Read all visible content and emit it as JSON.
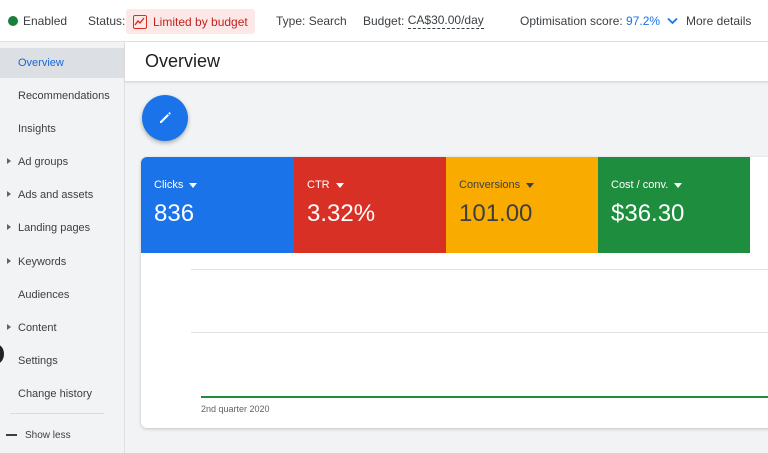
{
  "topbar": {
    "enabled_label": "Enabled",
    "status_label": "Status:",
    "status_value": "Limited by budget",
    "type_label": "Type:",
    "type_value": "Search",
    "budget_label": "Budget:",
    "budget_value": "CA$30.00/day",
    "optimisation_label": "Optimisation score:",
    "optimisation_value": "97.2%",
    "more_details": "More details",
    "colors": {
      "enabled": "#188038",
      "status_bg": "#fce8e6",
      "status_text": "#c5221f",
      "link": "#1a73e8"
    }
  },
  "sidebar": {
    "items": [
      {
        "label": "Overview",
        "active": true,
        "expandable": false
      },
      {
        "label": "Recommendations",
        "active": false,
        "expandable": false
      },
      {
        "label": "Insights",
        "active": false,
        "expandable": false
      },
      {
        "label": "Ad groups",
        "active": false,
        "expandable": true
      },
      {
        "label": "Ads and assets",
        "active": false,
        "expandable": true
      },
      {
        "label": "Landing pages",
        "active": false,
        "expandable": true
      },
      {
        "label": "Keywords",
        "active": false,
        "expandable": true
      },
      {
        "label": "Audiences",
        "active": false,
        "expandable": false
      },
      {
        "label": "Content",
        "active": false,
        "expandable": true
      },
      {
        "label": "Settings",
        "active": false,
        "expandable": false
      },
      {
        "label": "Change history",
        "active": false,
        "expandable": false
      }
    ],
    "show_less": "Show less"
  },
  "main": {
    "title": "Overview",
    "edit_icon": "pencil-icon",
    "metrics": [
      {
        "label": "Clicks",
        "value": "836",
        "color": "#1a73e8"
      },
      {
        "label": "CTR",
        "value": "3.32%",
        "color": "#d93025"
      },
      {
        "label": "Conversions",
        "value": "101.00",
        "color": "#f9ab00"
      },
      {
        "label": "Cost / conv.",
        "value": "$36.30",
        "color": "#1e8e3e"
      }
    ],
    "chart_x_label": "2nd quarter 2020"
  }
}
